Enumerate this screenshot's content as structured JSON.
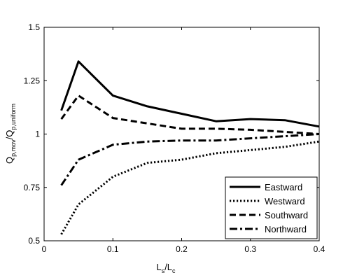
{
  "chart_data": {
    "type": "line",
    "xlabel_main": "L",
    "xlabel_sub1": "s",
    "xlabel_mid": "/L",
    "xlabel_sub2": "c",
    "ylabel_main1": "Q",
    "ylabel_sub1": "p,mov",
    "ylabel_mid": "/Q",
    "ylabel_sub2": "p,uniform",
    "xlim": [
      0,
      0.4
    ],
    "ylim": [
      0.5,
      1.5
    ],
    "xticks": [
      0,
      0.1,
      0.2,
      0.3,
      0.4
    ],
    "xtick_labels": [
      "0",
      "0.1",
      "0.2",
      "0.3",
      "0.4"
    ],
    "yticks": [
      0.5,
      0.75,
      1,
      1.25,
      1.5
    ],
    "ytick_labels": [
      "0.5",
      "0.75",
      "1",
      "1.25",
      "1.5"
    ],
    "grid": false,
    "legend_position": "bottom-right",
    "x": [
      0.025,
      0.05,
      0.1,
      0.15,
      0.2,
      0.25,
      0.3,
      0.35,
      0.4
    ],
    "series": [
      {
        "name": "Eastward",
        "style": "solid",
        "values": [
          1.11,
          1.34,
          1.18,
          1.13,
          1.095,
          1.06,
          1.07,
          1.065,
          1.035
        ]
      },
      {
        "name": "Westward",
        "style": "dotted",
        "values": [
          0.53,
          0.67,
          0.8,
          0.865,
          0.88,
          0.91,
          0.925,
          0.94,
          0.965
        ]
      },
      {
        "name": "Southward",
        "style": "dashed",
        "values": [
          1.07,
          1.18,
          1.075,
          1.05,
          1.025,
          1.025,
          1.02,
          1.01,
          1.0
        ]
      },
      {
        "name": "Northward",
        "style": "dashdot",
        "values": [
          0.76,
          0.88,
          0.95,
          0.965,
          0.97,
          0.97,
          0.98,
          0.99,
          1.0
        ]
      }
    ],
    "line_color": "#000000"
  }
}
